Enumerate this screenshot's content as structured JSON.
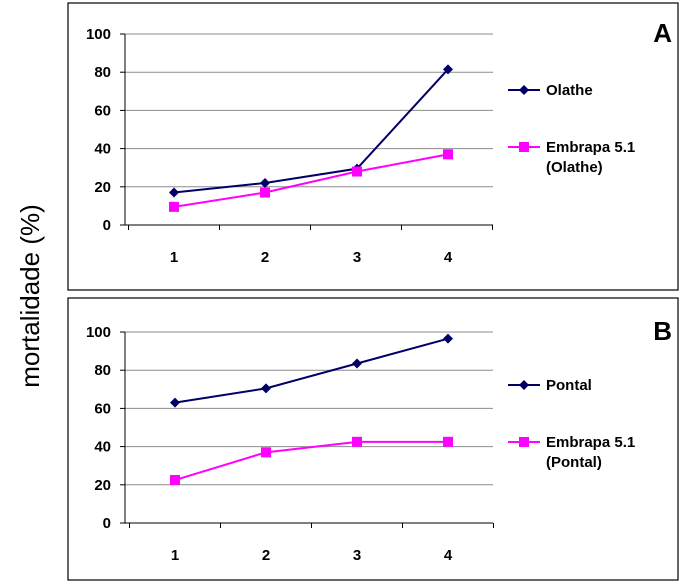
{
  "ylabel": "mortalidade (%)",
  "chart_data": [
    {
      "type": "line",
      "panel": "A",
      "categories": [
        "1",
        "2",
        "3",
        "4"
      ],
      "ylim": [
        0,
        100
      ],
      "yticks": [
        "0",
        "20",
        "40",
        "60",
        "80",
        "100"
      ],
      "grid": true,
      "legend_position": "right",
      "series": [
        {
          "name": "Olathe",
          "name_line2": "",
          "values": [
            17,
            22,
            29.5,
            81.5
          ],
          "color": "#000066",
          "marker": "diamond"
        },
        {
          "name": "Embrapa 5.1",
          "name_line2": "(Olathe)",
          "values": [
            9.5,
            17,
            28,
            37
          ],
          "color": "#ff00ff",
          "marker": "square"
        }
      ]
    },
    {
      "type": "line",
      "panel": "B",
      "categories": [
        "1",
        "2",
        "3",
        "4"
      ],
      "ylim": [
        0,
        100
      ],
      "yticks": [
        "0",
        "20",
        "40",
        "60",
        "80",
        "100"
      ],
      "grid": true,
      "legend_position": "right",
      "series": [
        {
          "name": "Pontal",
          "name_line2": "",
          "values": [
            63,
            70.5,
            83.5,
            96.5
          ],
          "color": "#000066",
          "marker": "diamond"
        },
        {
          "name": "Embrapa 5.1",
          "name_line2": "(Pontal)",
          "values": [
            22.5,
            37,
            42.5,
            42.5
          ],
          "color": "#ff00ff",
          "marker": "square"
        }
      ]
    }
  ]
}
